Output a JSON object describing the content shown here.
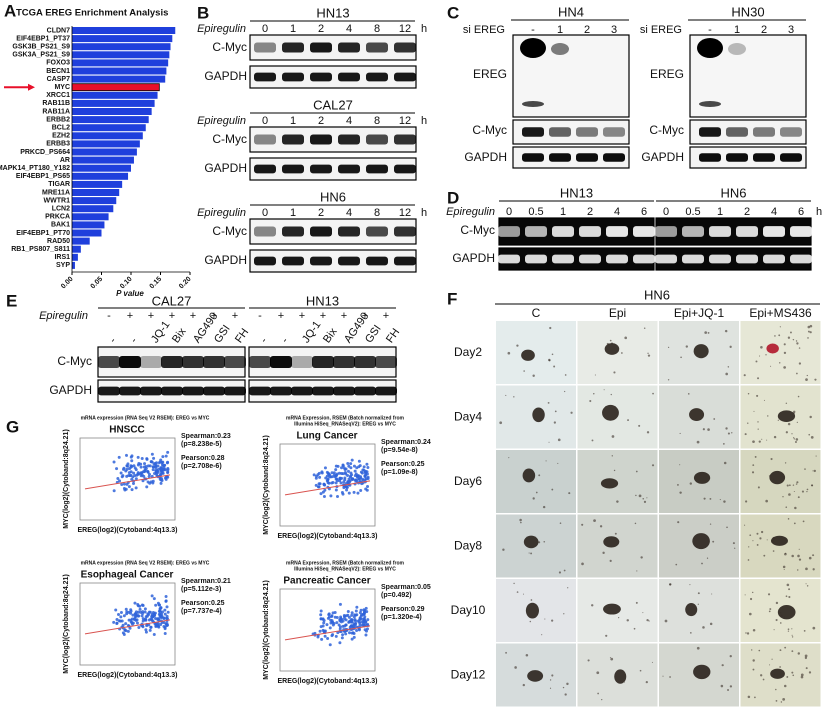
{
  "panel_a": {
    "letter": "A",
    "title": "TCGA EREG Enrichment Analysis",
    "type": "bar",
    "categories": [
      "CLDN7",
      "EIF4EBP1_PT37",
      "GSK3B_PS21_S9",
      "GSK3A_PS21_S9",
      "FOXO3",
      "BECN1",
      "CASP7",
      "MYC",
      "XRCC1",
      "RAB11B",
      "RAB11A",
      "ERBB2",
      "BCL2",
      "EZH2",
      "ERBB3",
      "PRKCD_PS664",
      "AR",
      "MAPK14_PT180_Y182",
      "EIF4EBP1_PS65",
      "TIGAR",
      "MRE11A",
      "WWTR1",
      "LCN2",
      "PRKCA",
      "BAK1",
      "EIF4EBP1_PT70",
      "RAD50",
      "RB1_PS807_S811",
      "IRS1",
      "SYP"
    ],
    "values": [
      0.175,
      0.17,
      0.167,
      0.165,
      0.163,
      0.16,
      0.158,
      0.148,
      0.145,
      0.14,
      0.135,
      0.13,
      0.125,
      0.12,
      0.115,
      0.11,
      0.105,
      0.1,
      0.095,
      0.085,
      0.08,
      0.075,
      0.07,
      0.062,
      0.055,
      0.05,
      0.03,
      0.015,
      0.01,
      0.005
    ],
    "color": "#1f3fdc",
    "highlight_color": "#e8102a",
    "highlight": 7,
    "xlim": [
      0,
      0.2
    ],
    "xticks": [
      {
        "value": 0,
        "label": "0.00"
      },
      {
        "value": 0.05,
        "label": "0.05"
      },
      {
        "value": 0.1,
        "label": "0.10"
      },
      {
        "value": 0.15,
        "label": "0.15"
      },
      {
        "value": 0.2,
        "label": "0.20"
      }
    ],
    "xlabel": "P value"
  },
  "panel_b": {
    "letter": "B",
    "treatment": "Epiregulin",
    "unit": "h",
    "doses": [
      "0",
      "1",
      "2",
      "4",
      "8",
      "12"
    ],
    "blocks": [
      "HN13",
      "CAL27",
      "HN6"
    ],
    "rows": [
      "C-Myc",
      "GAPDH"
    ]
  },
  "panel_c": {
    "letter": "C",
    "treatment": "si EREG",
    "lanes": [
      "-",
      "1",
      "2",
      "3"
    ],
    "cell_lines": [
      "HN4",
      "HN30"
    ],
    "rows": [
      "EREG",
      "C-Myc",
      "GAPDH"
    ]
  },
  "panel_d": {
    "letter": "D",
    "treatment": "Epiregulin",
    "unit": "h",
    "doses": [
      "0",
      "0.5",
      "1",
      "2",
      "4",
      "6"
    ],
    "cell_lines": [
      "HN13",
      "HN6"
    ],
    "rows": [
      "C-Myc",
      "GAPDH"
    ]
  },
  "panel_e": {
    "letter": "E",
    "treatment": "Epiregulin",
    "signs": [
      "-",
      "+",
      "+",
      "+",
      "+",
      "+",
      "+"
    ],
    "inhibitors": [
      "-",
      "-",
      "JQ-1",
      "Bix",
      "AG490",
      "GSI",
      "FH"
    ],
    "cell_lines": [
      "CAL27",
      "HN13"
    ],
    "rows": [
      "C-Myc",
      "GAPDH"
    ]
  },
  "panel_f": {
    "letter": "F",
    "cell_line": "HN6",
    "conditions": [
      "C",
      "Epi",
      "Epi+JQ-1",
      "Epi+MS436"
    ],
    "days": [
      "Day2",
      "Day4",
      "Day6",
      "Day8",
      "Day10",
      "Day12"
    ]
  },
  "panel_g": {
    "letter": "G",
    "plots": [
      {
        "header": [
          "mRNA expression (RNA Seq V2 RSEM): EREG vs MYC"
        ],
        "title": "HNSCC",
        "stats": [
          "Spearman:0.23",
          "(p=8.238e-5)",
          "Pearson:0.28",
          "(p=2.708e-6)"
        ],
        "xlabel": "EREG(log2)(Cytoband:4q13.3)",
        "ylabel": "MYC(log2)(Cytoband:8q24.21)"
      },
      {
        "header": [
          "mRNA Expression, RSEM (Batch normalized from",
          "Illumina HiSeq_RNASeqV2): EREG vs MYC"
        ],
        "title": "Lung Cancer",
        "stats": [
          "Spearman:0.24",
          "(p=9.54e-8)",
          "Pearson:0.25",
          "(p=1.09e-8)"
        ],
        "xlabel": "EREG(log2)(Cytoband:4q13.3)",
        "ylabel": "MYC(log2)(Cytoband:8q24.21)"
      },
      {
        "header": [
          "mRNA expression (RNA Seq V2 RSEM): EREG vs MYC"
        ],
        "title": "Esophageal Cancer",
        "stats": [
          "Spearman:0.21",
          "(p=5.112e-3)",
          "Pearson:0.25",
          "(p=7.737e-4)"
        ],
        "xlabel": "EREG(log2)(Cytoband:4q13.3)",
        "ylabel": "MYC(log2)(Cytoband:8q24.21)"
      },
      {
        "header": [
          "mRNA Expression, RSEM (Batch normalized from",
          "Illumina HiSeq_RNASeqV2): EREG vs MYC"
        ],
        "title": "Pancreatic Cancer",
        "stats": [
          "Spearman:0.05",
          "(p=0.492)",
          "Pearson:0.29",
          "(p=1.320e-4)"
        ],
        "xlabel": "EREG(log2)(Cytoband:4q13.3)",
        "ylabel": "MYC(log2)(Cytoband:8q24.21)"
      }
    ]
  }
}
